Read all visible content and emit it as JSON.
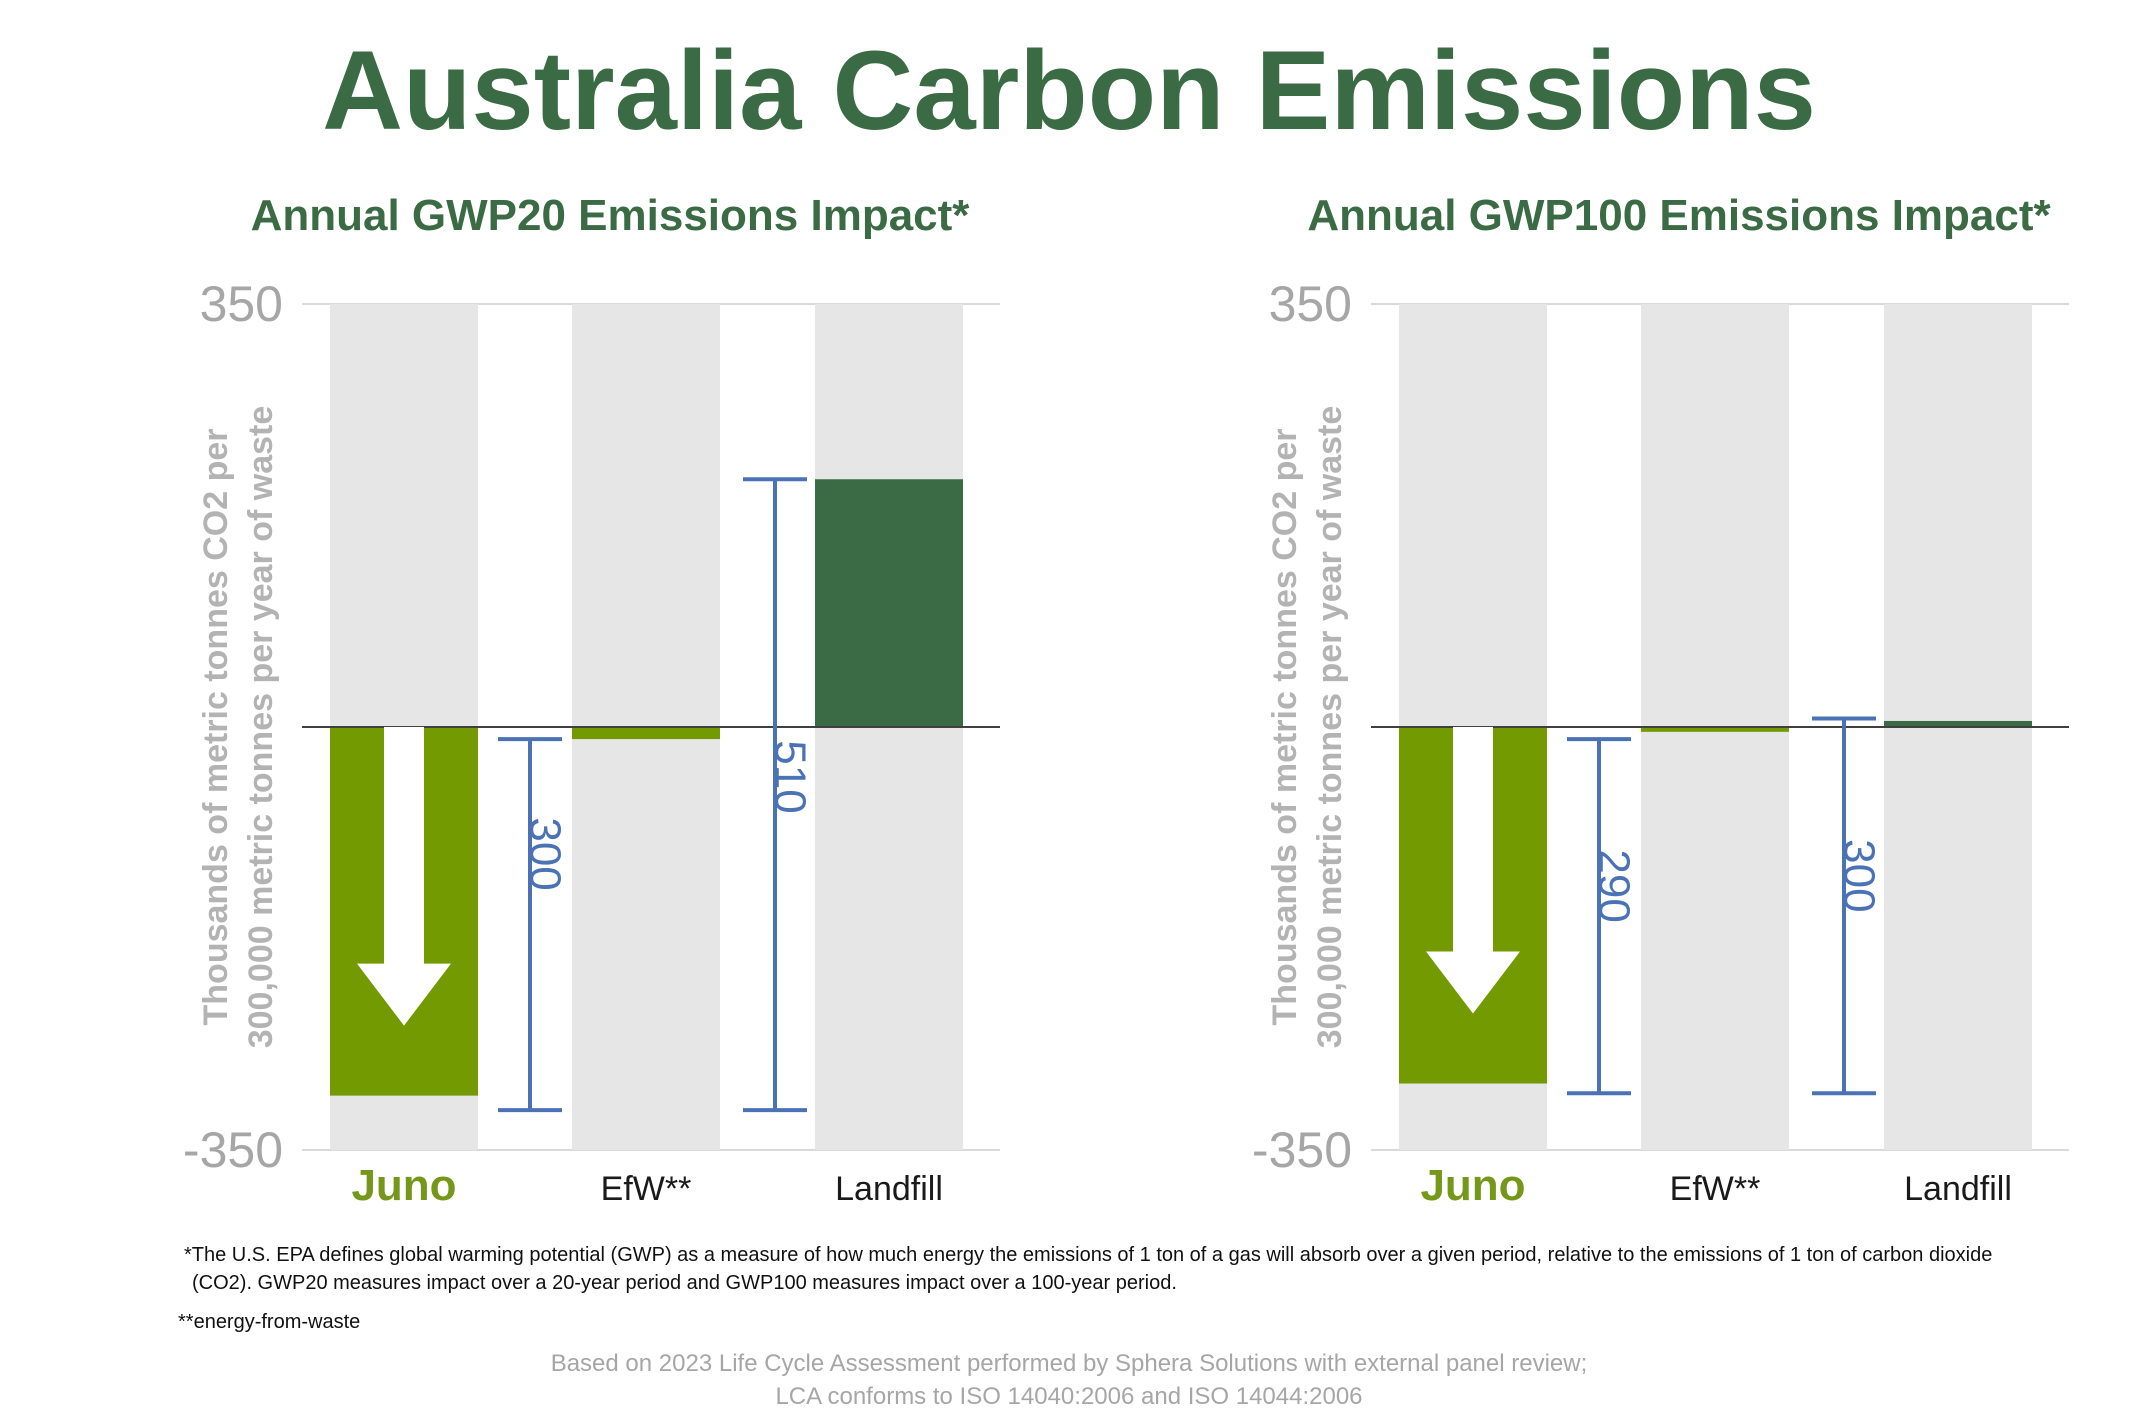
{
  "title": "Australia Carbon Emissions",
  "chart_data": [
    {
      "type": "bar",
      "title": "Annual GWP20 Emissions Impact*",
      "ylabel_lines": [
        "Thousands of metric tonnes CO2 per",
        "300,000 metric tonnes per year of waste"
      ],
      "ylim": [
        -350,
        350
      ],
      "yticks": [
        "350",
        "-350"
      ],
      "categories": [
        "Juno",
        "EfW**",
        "Landfill"
      ],
      "values": [
        -305,
        -10,
        205
      ],
      "bar_colors": [
        "#739a00",
        "#739a00",
        "#3b6b44"
      ],
      "background_band_color": "#e6e6e6",
      "reduction_arrow_on": "Juno",
      "differences": [
        {
          "label": "300",
          "from": -10,
          "to": -317
        },
        {
          "label": "510",
          "from": 205,
          "to": -317
        }
      ]
    },
    {
      "type": "bar",
      "title": "Annual GWP100 Emissions Impact*",
      "ylabel_lines": [
        "Thousands of metric tonnes CO2 per",
        "300,000 metric tonnes per year of waste"
      ],
      "ylim": [
        -350,
        350
      ],
      "yticks": [
        "350",
        "-350"
      ],
      "categories": [
        "Juno",
        "EfW**",
        "Landfill"
      ],
      "values": [
        -295,
        -4,
        5
      ],
      "bar_colors": [
        "#739a00",
        "#739a00",
        "#3b6b44"
      ],
      "background_band_color": "#e6e6e6",
      "reduction_arrow_on": "Juno",
      "differences": [
        {
          "label": "290",
          "from": -10,
          "to": -303
        },
        {
          "label": "300",
          "from": 7,
          "to": -303
        }
      ]
    }
  ],
  "footnotes": [
    "*The U.S. EPA defines global warming potential (GWP) as a measure of how much energy the emissions of 1 ton of a gas will absorb over a given period, relative to the emissions of 1 ton of carbon dioxide (CO2). GWP20 measures impact over a 20-year period and GWP100 measures impact over a 100-year period.",
    "**energy-from-waste"
  ],
  "source_lines": [
    "Based on 2023 Life Cycle Assessment performed by Sphera Solutions with external panel review;",
    "LCA conforms to ISO 14040:2006 and ISO 14044:2006"
  ]
}
